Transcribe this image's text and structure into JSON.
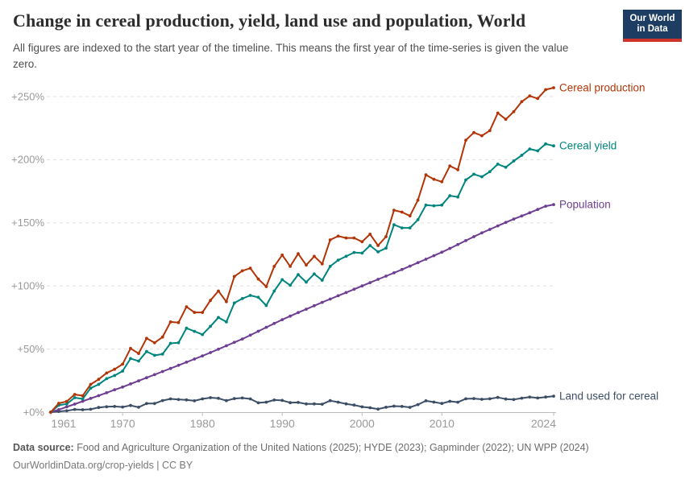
{
  "header": {
    "title": "Change in cereal production, yield, land use and population, World",
    "subtitle": "All figures are indexed to the start year of the timeline. This means the first year of the time-series is given the value zero.",
    "logo": {
      "line1": "Our World",
      "line2": "in Data",
      "bg_color": "#1D3D63",
      "stripe_color": "#CE342C",
      "text_color": "#FFFFFF"
    }
  },
  "footer": {
    "source_label": "Data source:",
    "source_text": "Food and Agriculture Organization of the United Nations (2025); HYDE (2023); Gapminder (2022); UN WPP (2024)",
    "line2": "OurWorldinData.org/crop-yields | CC BY"
  },
  "chart_data": {
    "type": "line",
    "title": "Change in cereal production, yield, land use and population, World",
    "xlabel": "",
    "ylabel": "",
    "xlim": [
      1961,
      2024
    ],
    "ylim": [
      0,
      250
    ],
    "grid": "horizontal-dashed",
    "legend_position": "right-of-line-ends",
    "x_ticks": [
      1961,
      1970,
      1980,
      1990,
      2000,
      2010,
      2024
    ],
    "y_ticks": [
      0,
      50,
      100,
      150,
      200,
      250
    ],
    "y_tick_labels": [
      "+0%",
      "+50%",
      "+100%",
      "+150%",
      "+200%",
      "+250%"
    ],
    "unit": "% change since 1961",
    "colors": {
      "grid": "#E0E0E0",
      "axis": "#BBBBBB",
      "tick_label": "#999999"
    },
    "x": [
      1961,
      1962,
      1963,
      1964,
      1965,
      1966,
      1967,
      1968,
      1969,
      1970,
      1971,
      1972,
      1973,
      1974,
      1975,
      1976,
      1977,
      1978,
      1979,
      1980,
      1981,
      1982,
      1983,
      1984,
      1985,
      1986,
      1987,
      1988,
      1989,
      1990,
      1991,
      1992,
      1993,
      1994,
      1995,
      1996,
      1997,
      1998,
      1999,
      2000,
      2001,
      2002,
      2003,
      2004,
      2005,
      2006,
      2007,
      2008,
      2009,
      2010,
      2011,
      2012,
      2013,
      2014,
      2015,
      2016,
      2017,
      2018,
      2019,
      2020,
      2021,
      2022,
      2023,
      2024
    ],
    "series": [
      {
        "id": "land-used-for-cereal",
        "label": "Land used for cereal",
        "color": "#3C4E66",
        "values": [
          0,
          0.6,
          1.1,
          2.2,
          1.9,
          2.3,
          3.7,
          4.3,
          4.5,
          4.1,
          5.3,
          3.9,
          6.8,
          6.8,
          9.2,
          10.5,
          10,
          9.7,
          9,
          10.5,
          11.5,
          11,
          9.1,
          10.8,
          11.2,
          10.5,
          7.4,
          7.9,
          9.6,
          9.3,
          7.5,
          7.7,
          6.5,
          6.6,
          6.3,
          9.1,
          7.9,
          6.6,
          5.6,
          4.2,
          3.5,
          2.4,
          3.9,
          4.8,
          4.5,
          3.8,
          6,
          9,
          8,
          6.9,
          8.6,
          7.9,
          10.6,
          10.8,
          10.2,
          10.6,
          11.7,
          10.4,
          10,
          11.1,
          11.9,
          11.2,
          12,
          12.7
        ]
      },
      {
        "id": "population",
        "label": "Population",
        "color": "#6D3E91",
        "values": [
          0,
          2,
          4.2,
          6.4,
          8.6,
          10.9,
          13.1,
          15.4,
          17.7,
          19.9,
          22.4,
          24.8,
          27.3,
          29.7,
          32.2,
          34.6,
          37.1,
          39.6,
          42.1,
          44.6,
          47.2,
          49.9,
          52.6,
          55.3,
          58,
          61,
          64.1,
          67.2,
          70.3,
          73.3,
          76.1,
          78.9,
          81.6,
          84.3,
          87,
          89.6,
          92.2,
          94.8,
          97.4,
          100,
          102.6,
          105.2,
          107.8,
          110.4,
          113,
          115.7,
          118.4,
          121.2,
          124,
          126.7,
          129.7,
          132.8,
          135.9,
          139,
          142,
          144.8,
          147.6,
          150.3,
          153,
          155.4,
          158,
          160.6,
          163.2,
          164.5
        ]
      },
      {
        "id": "cereal-yield",
        "label": "Cereal yield",
        "color": "#00847E",
        "values": [
          0,
          5.5,
          6.5,
          11.5,
          10.5,
          19,
          22,
          26.5,
          29,
          32.5,
          42.5,
          40.5,
          48,
          45,
          46,
          54.5,
          55,
          66.5,
          64,
          61.5,
          68,
          75,
          71.5,
          86.5,
          90,
          92.5,
          91,
          84.5,
          96,
          105,
          100.5,
          109,
          103,
          109.5,
          104.5,
          115.5,
          120.5,
          123.5,
          126.5,
          126,
          132,
          127,
          130,
          148.5,
          146,
          146,
          152.5,
          164,
          163.5,
          164,
          171.5,
          170.5,
          184,
          188.5,
          186.5,
          190.5,
          196.5,
          194,
          199,
          203.5,
          208.5,
          207,
          212.5,
          211
        ]
      },
      {
        "id": "cereal-production",
        "label": "Cereal production",
        "color": "#B13507",
        "values": [
          0,
          7,
          8.5,
          14,
          13,
          22,
          26,
          31,
          34,
          38,
          50.5,
          46.5,
          58.5,
          55,
          59.5,
          71.5,
          71,
          83.5,
          79,
          79,
          88.5,
          96,
          87.5,
          107.5,
          112,
          114,
          105.5,
          99.5,
          115.5,
          124.5,
          115.5,
          125.5,
          116.5,
          123.5,
          117.5,
          136.5,
          139.5,
          138,
          138,
          135,
          141,
          132,
          139,
          160,
          158.5,
          155.5,
          168,
          188,
          184.5,
          182.5,
          195,
          192,
          215.5,
          221.5,
          219,
          223,
          237,
          232,
          238,
          246,
          250.5,
          248.5,
          255.5,
          257
        ]
      }
    ]
  }
}
